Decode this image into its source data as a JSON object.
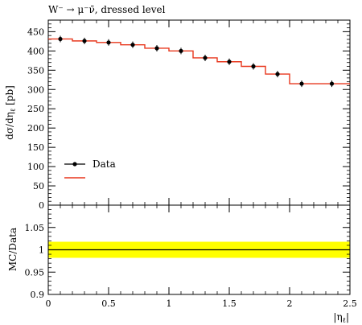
{
  "chart_data": [
    {
      "type": "line",
      "title": "W⁻ → μ⁻ν̄, dressed level",
      "ylabel": "dσ/dη",
      "ylabel_sub": "ℓ",
      "ylabel_unit": " [pb]",
      "xlim": [
        0,
        2.5
      ],
      "ylim": [
        0,
        480
      ],
      "y_ticks": [
        0,
        50,
        100,
        150,
        200,
        250,
        300,
        350,
        400,
        450
      ],
      "y_tick_labels": [
        "0",
        "50",
        "100",
        "150",
        "200",
        "250",
        "300",
        "350",
        "400",
        "450"
      ],
      "legend": {
        "position": "bottom-left",
        "entries": [
          {
            "label": "Data",
            "color": "#000000",
            "style": "marker"
          },
          {
            "label": "",
            "color": "#e8371d",
            "style": "line"
          }
        ]
      },
      "bin_edges": [
        0,
        0.2,
        0.4,
        0.6,
        0.8,
        1.0,
        1.2,
        1.4,
        1.6,
        1.8,
        2.0,
        2.2,
        2.5
      ],
      "data_points": {
        "name": "Data",
        "x": [
          0.1,
          0.3,
          0.5,
          0.7,
          0.9,
          1.1,
          1.3,
          1.5,
          1.7,
          1.9,
          2.1,
          2.35
        ],
        "y": [
          431,
          426,
          422,
          416,
          407,
          400,
          382,
          372,
          360,
          340,
          315,
          315
        ]
      },
      "mc_histogram": {
        "values": [
          431,
          426,
          422,
          416,
          407,
          400,
          382,
          372,
          360,
          340,
          315,
          315
        ],
        "color": "#e8371d"
      }
    },
    {
      "type": "line",
      "ylabel": "MC/Data",
      "xlabel": "|η",
      "xlabel_sub": "ℓ",
      "xlabel_suffix": "|",
      "xlim": [
        0,
        2.5
      ],
      "ylim": [
        0.9,
        1.1
      ],
      "y_ticks": [
        0.9,
        0.95,
        1.0,
        1.05
      ],
      "y_tick_labels": [
        "0.9",
        "0.95",
        "1",
        "1.05"
      ],
      "x_ticks": [
        0,
        0.5,
        1.0,
        1.5,
        2.0,
        2.5
      ],
      "x_tick_labels": [
        "0",
        "0.5",
        "1",
        "1.5",
        "2",
        "2.5"
      ],
      "ratio": 1.0,
      "band": [
        0.982,
        1.018
      ],
      "band_color": "#ffff00",
      "line_color": "#000000"
    }
  ]
}
